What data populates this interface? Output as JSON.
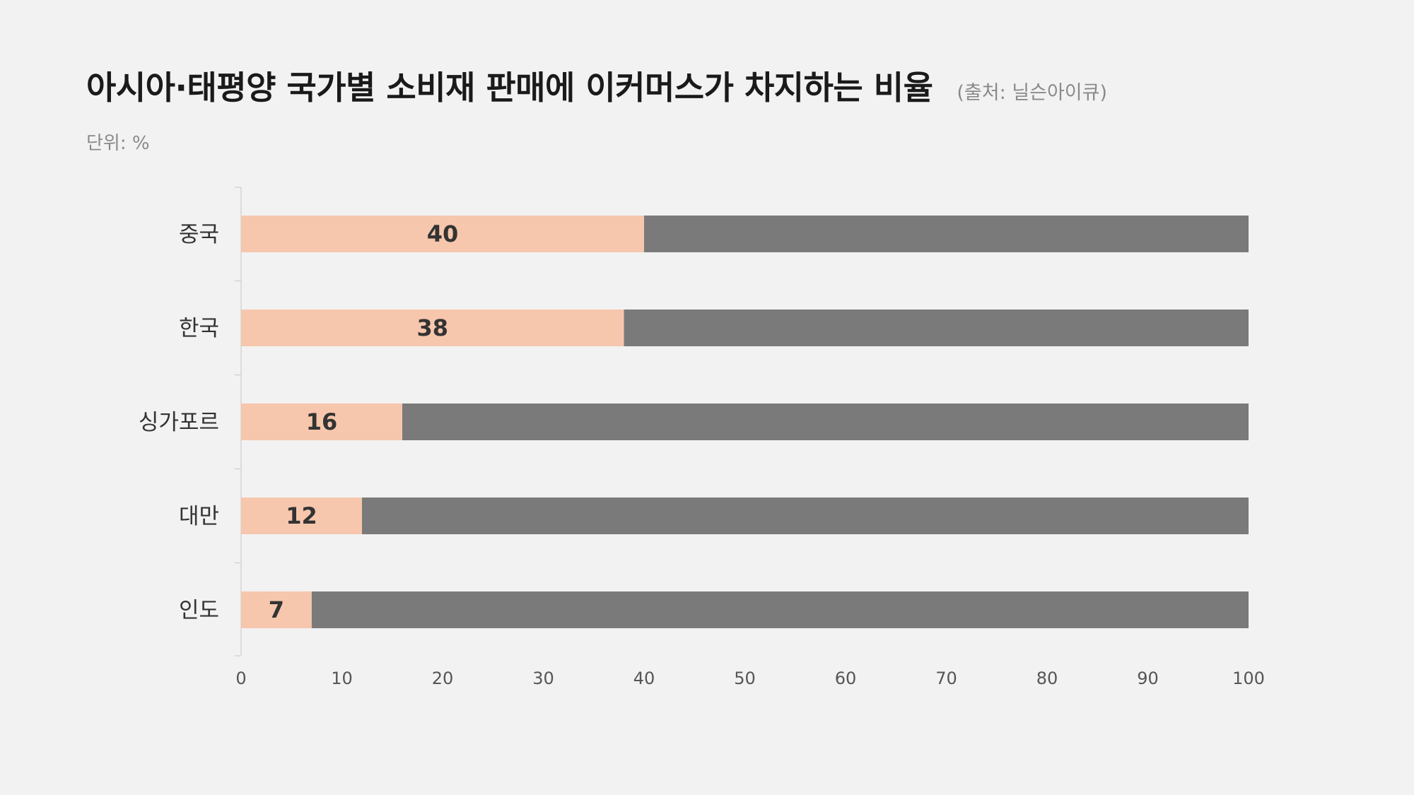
{
  "chart_data": {
    "type": "bar",
    "orientation": "horizontal",
    "stacked_to_total": true,
    "title": "아시아·태평양 국가별 소비재 판매에 이커머스가 차지하는 비율",
    "source": "(출처: 닐슨아이큐)",
    "unit": "단위: %",
    "categories": [
      "중국",
      "한국",
      "싱가포르",
      "대만",
      "인도"
    ],
    "values": [
      40,
      38,
      16,
      12,
      7
    ],
    "value_labels": [
      "40",
      "38",
      "16",
      "12",
      "7"
    ],
    "total": 100,
    "xlim": [
      0,
      100
    ],
    "xticks": [
      "0",
      "10",
      "20",
      "30",
      "40",
      "50",
      "60",
      "70",
      "80",
      "90",
      "100"
    ],
    "colors": {
      "value": "#f6c6ad",
      "remainder": "#7a7a7a",
      "axis": "#d4d4d4",
      "tick_text": "#555555",
      "category_text": "#333333",
      "value_text": "#333333"
    },
    "grid": false,
    "legend": "none"
  }
}
